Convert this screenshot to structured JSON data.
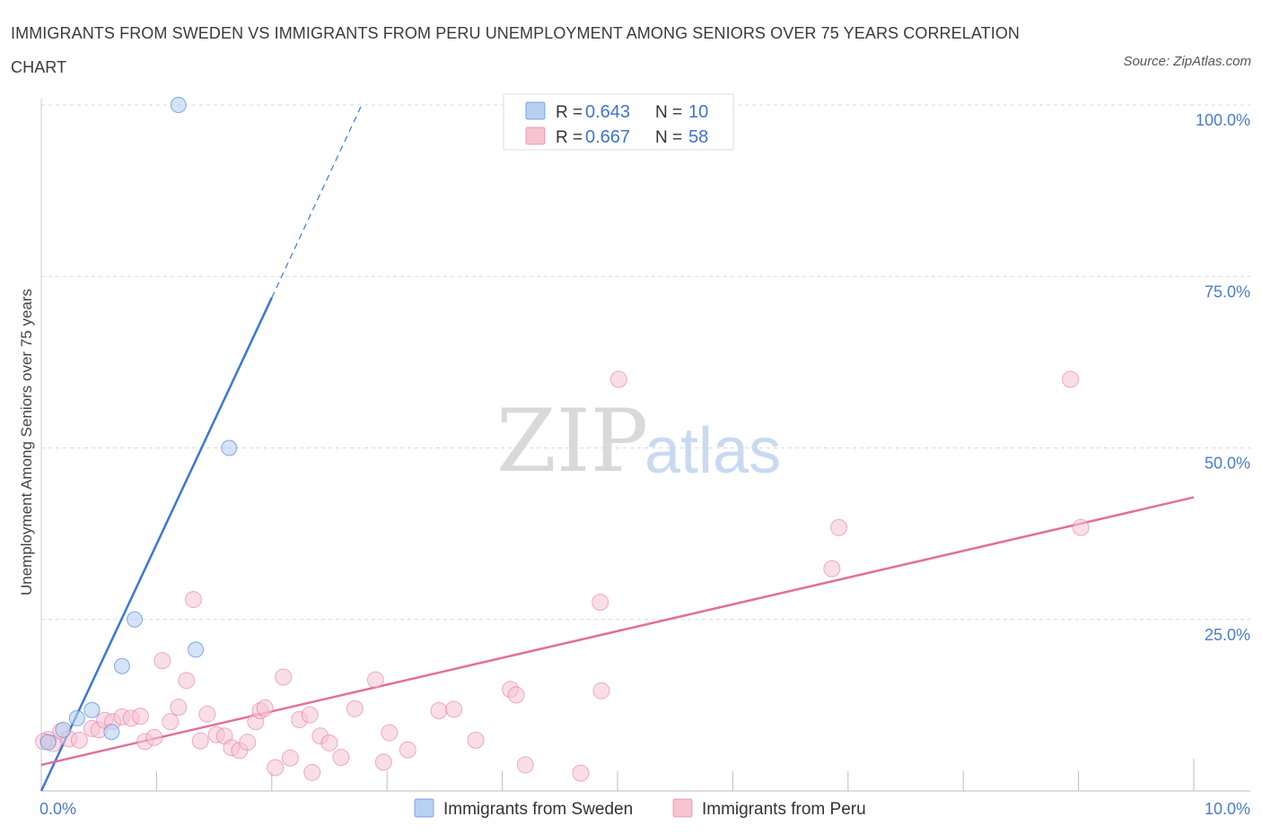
{
  "title": "IMMIGRANTS FROM SWEDEN VS IMMIGRANTS FROM PERU UNEMPLOYMENT AMONG SENIORS OVER 75 YEARS CORRELATION CHART",
  "source": "Source: ZipAtlas.com",
  "watermark": {
    "zip": "ZIP",
    "atlas": "atlas"
  },
  "colors": {
    "sweden": "#3a78d4",
    "sweden_fill": "#b8d1f2",
    "peru": "#e0709a",
    "peru_fill": "#f6c3d3"
  },
  "legend": {
    "r_label": "R =",
    "n_label": "N =",
    "rows": [
      {
        "series": "Immigrants from Sweden",
        "r": "0.643",
        "n": "10"
      },
      {
        "series": "Immigrants from Peru",
        "r": "0.667",
        "n": "58"
      }
    ]
  },
  "bottom_legend": [
    "Immigrants from Sweden",
    "Immigrants from Peru"
  ],
  "chart_data": {
    "type": "scatter",
    "title": "IMMIGRANTS FROM SWEDEN VS IMMIGRANTS FROM PERU UNEMPLOYMENT AMONG SENIORS OVER 75 YEARS CORRELATION CHART",
    "xlabel": "",
    "ylabel": "Unemployment Among Seniors over 75 years",
    "xlim": [
      0,
      10
    ],
    "ylim": [
      0,
      100
    ],
    "x_tick_labels": [
      "0.0%",
      "10.0%"
    ],
    "y_tick_labels": [
      "100.0%",
      "75.0%",
      "50.0%",
      "25.0%"
    ],
    "y_ticks": [
      100,
      75,
      50,
      25
    ],
    "series": [
      {
        "name": "Immigrants from Sweden",
        "points": [
          [
            1.19,
            100
          ],
          [
            1.63,
            50
          ],
          [
            0.81,
            25
          ],
          [
            0.7,
            18.2
          ],
          [
            1.34,
            20.6
          ],
          [
            0.44,
            11.8
          ],
          [
            0.31,
            10.6
          ],
          [
            0.61,
            8.6
          ],
          [
            0.19,
            8.9
          ],
          [
            0.06,
            7.1
          ]
        ],
        "trend": {
          "x0": 0,
          "y0": 0,
          "x1": 2.0,
          "y1": 71.9,
          "dashed_to_x": 2.78,
          "dashed_to_y": 100
        }
      },
      {
        "name": "Immigrants from Peru",
        "points": [
          [
            0.06,
            7.5
          ],
          [
            0.1,
            6.9
          ],
          [
            0.17,
            8.7
          ],
          [
            0.24,
            7.6
          ],
          [
            0.33,
            7.4
          ],
          [
            0.44,
            9.1
          ],
          [
            0.5,
            8.9
          ],
          [
            0.55,
            10.3
          ],
          [
            0.62,
            10.1
          ],
          [
            0.7,
            10.8
          ],
          [
            0.78,
            10.6
          ],
          [
            0.86,
            10.9
          ],
          [
            0.9,
            7.2
          ],
          [
            0.98,
            7.8
          ],
          [
            1.05,
            19.0
          ],
          [
            1.12,
            10.1
          ],
          [
            1.19,
            12.2
          ],
          [
            1.26,
            16.1
          ],
          [
            1.32,
            27.9
          ],
          [
            1.38,
            7.3
          ],
          [
            1.44,
            11.2
          ],
          [
            1.52,
            8.2
          ],
          [
            1.59,
            8.0
          ],
          [
            1.65,
            6.3
          ],
          [
            1.72,
            5.9
          ],
          [
            1.79,
            7.1
          ],
          [
            1.86,
            10.1
          ],
          [
            1.9,
            11.7
          ],
          [
            1.94,
            12.1
          ],
          [
            2.03,
            3.4
          ],
          [
            2.1,
            16.6
          ],
          [
            2.16,
            4.8
          ],
          [
            2.24,
            10.4
          ],
          [
            2.33,
            11.1
          ],
          [
            2.35,
            2.7
          ],
          [
            2.42,
            8.0
          ],
          [
            2.5,
            7.0
          ],
          [
            2.6,
            4.9
          ],
          [
            2.72,
            12.0
          ],
          [
            2.9,
            16.2
          ],
          [
            2.97,
            4.2
          ],
          [
            3.02,
            8.5
          ],
          [
            3.18,
            6.0
          ],
          [
            3.45,
            11.7
          ],
          [
            3.58,
            11.9
          ],
          [
            3.77,
            7.4
          ],
          [
            4.07,
            14.8
          ],
          [
            4.12,
            14.0
          ],
          [
            4.2,
            3.8
          ],
          [
            4.68,
            2.6
          ],
          [
            4.85,
            27.5
          ],
          [
            4.86,
            14.6
          ],
          [
            5.01,
            60.0
          ],
          [
            6.86,
            32.4
          ],
          [
            6.92,
            38.4
          ],
          [
            8.93,
            60.0
          ],
          [
            9.02,
            38.4
          ],
          [
            0.02,
            7.2
          ]
        ],
        "trend": {
          "x0": 0,
          "y0": 3.8,
          "x1": 10,
          "y1": 42.8
        }
      }
    ]
  }
}
